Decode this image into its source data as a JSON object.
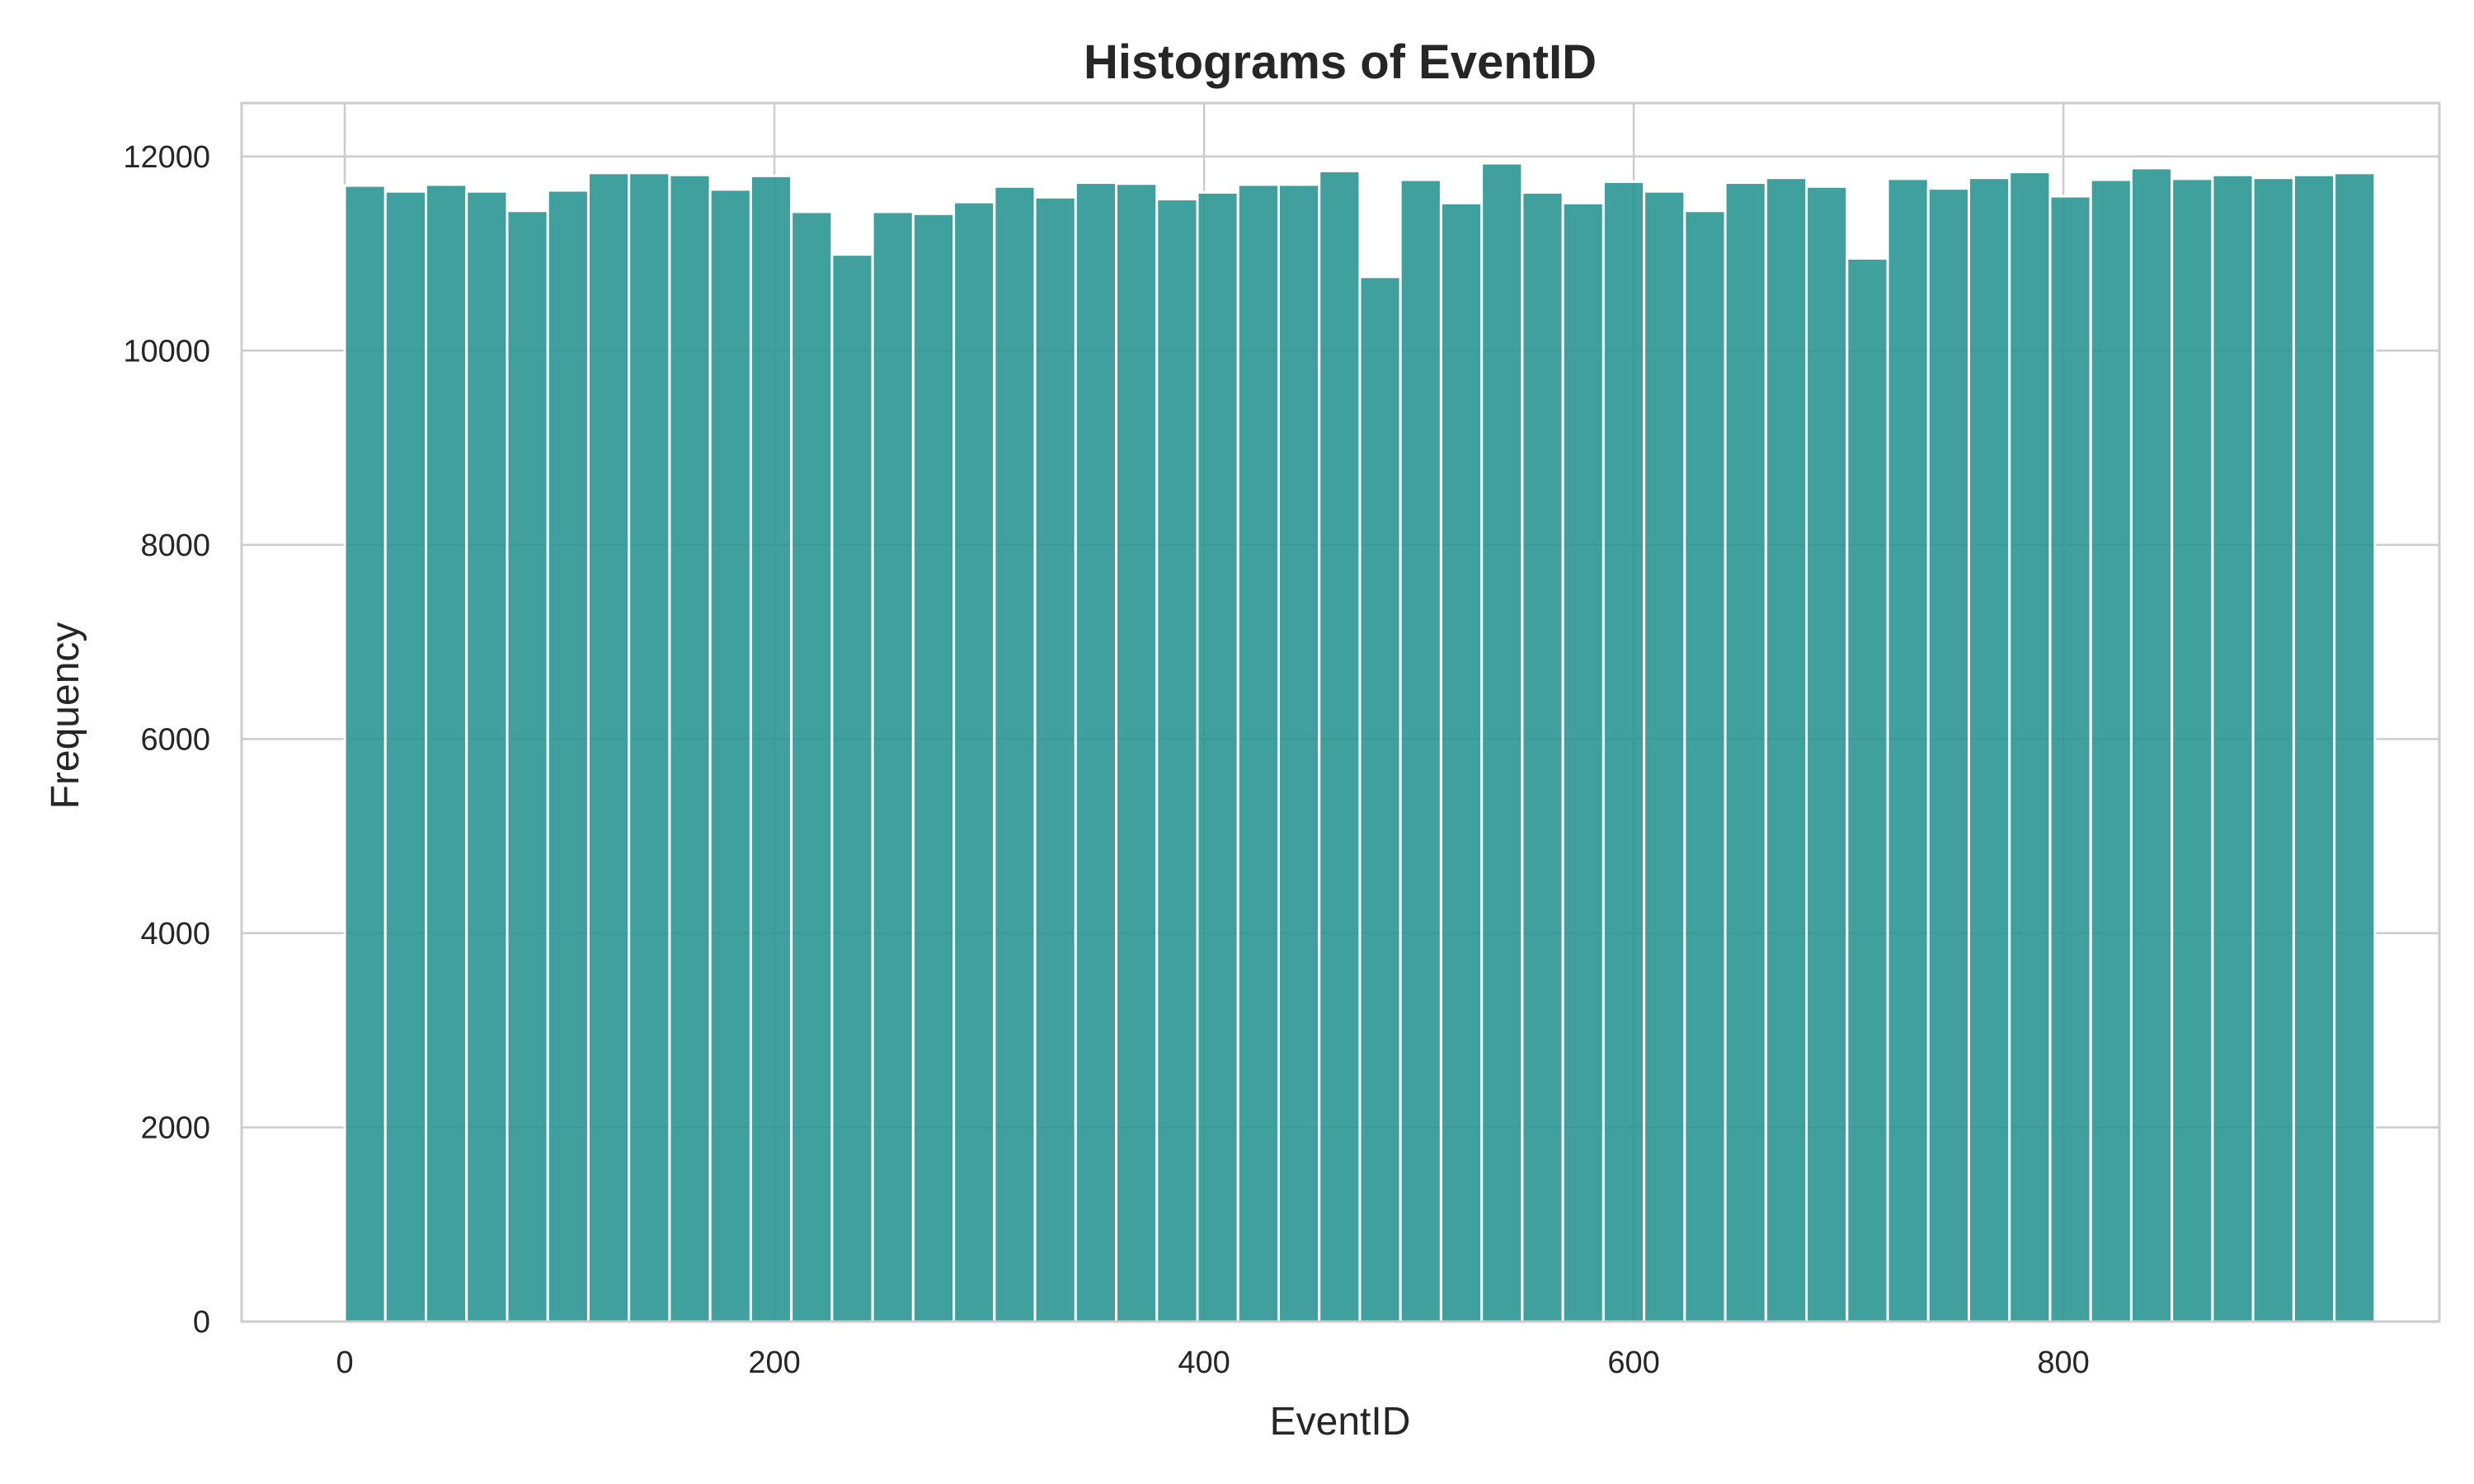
{
  "chart_data": {
    "type": "bar",
    "title": "Histograms of EventID",
    "xlabel": "EventID",
    "ylabel": "Frequency",
    "xlim": [
      -48,
      975
    ],
    "ylim": [
      0,
      12550
    ],
    "xticks": [
      0,
      200,
      400,
      600,
      800
    ],
    "yticks": [
      0,
      2000,
      4000,
      6000,
      8000,
      10000,
      12000
    ],
    "bin_start": 0,
    "bin_width": 18.9,
    "grid": true,
    "colors": {
      "bar": "#2a9694",
      "grid": "#cccccc",
      "text": "#262626"
    },
    "values": [
      11700,
      11640,
      11710,
      11640,
      11440,
      11650,
      11830,
      11830,
      11810,
      11660,
      11800,
      11430,
      10990,
      11430,
      11410,
      11530,
      11690,
      11580,
      11730,
      11720,
      11560,
      11630,
      11710,
      11710,
      11850,
      10760,
      11760,
      11520,
      11930,
      11630,
      11520,
      11740,
      11640,
      11440,
      11730,
      11780,
      11690,
      10950,
      11770,
      11670,
      11780,
      11840,
      11590,
      11760,
      11880,
      11770,
      11810,
      11780,
      11810,
      11830
    ]
  }
}
